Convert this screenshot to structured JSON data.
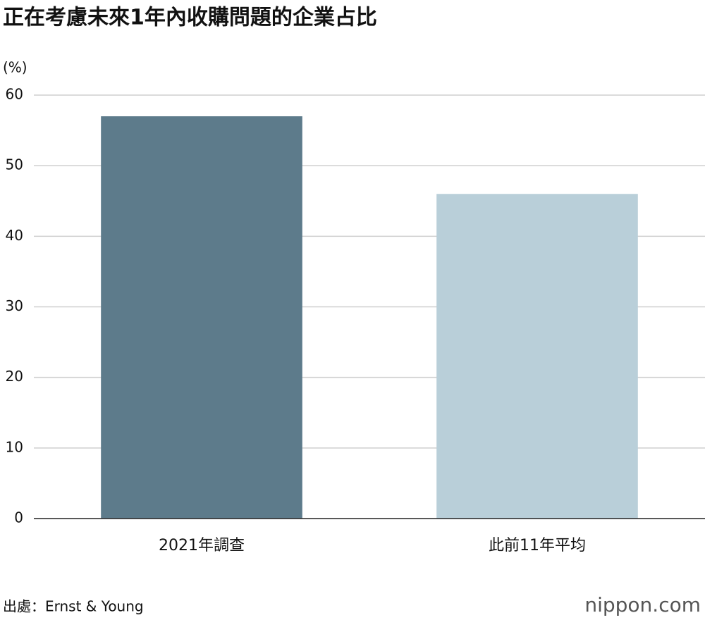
{
  "chart_data": {
    "type": "bar",
    "title": "正在考慮未來1年內收購問題的企業占比",
    "y_label": "(%)",
    "categories": [
      "2021年調查",
      "此前11年平均"
    ],
    "values": [
      57,
      46
    ],
    "colors": [
      "#5d7b8b",
      "#b9cfd9"
    ],
    "ylim": [
      0,
      60
    ],
    "yticks": [
      0,
      10,
      20,
      30,
      40,
      50,
      60
    ],
    "grid": true,
    "source": "出處：Ernst & Young",
    "logo": "nippon.com"
  }
}
